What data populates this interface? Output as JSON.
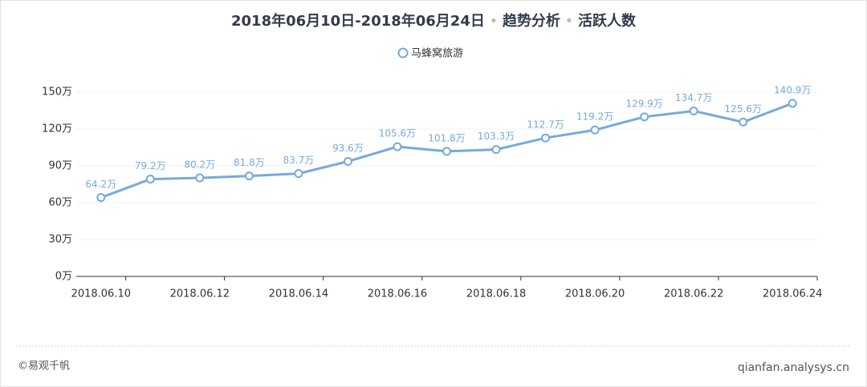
{
  "chart_data": {
    "type": "line",
    "title_parts": [
      "2018年06月10日-2018年06月24日",
      "趋势分析",
      "活跃人数"
    ],
    "categories": [
      "2018.06.10",
      null,
      "2018.06.12",
      null,
      "2018.06.14",
      null,
      "2018.06.16",
      null,
      "2018.06.18",
      null,
      "2018.06.20",
      null,
      "2018.06.22",
      null,
      "2018.06.24"
    ],
    "series": [
      {
        "name": "马蜂窝旅游",
        "color": "#76aadc",
        "values": [
          64.2,
          79.2,
          80.2,
          81.8,
          83.7,
          93.6,
          105.6,
          101.8,
          103.3,
          112.7,
          119.2,
          129.9,
          134.7,
          125.6,
          140.9
        ],
        "value_labels": [
          "64.2万",
          "79.2万",
          "80.2万",
          "81.8万",
          "83.7万",
          "93.6万",
          "105.6万",
          "101.8万",
          "103.3万",
          "112.7万",
          "119.2万",
          "129.9万",
          "134.7万",
          "125.6万",
          "140.9万"
        ]
      }
    ],
    "ylim": [
      0,
      150
    ],
    "yticks": [
      {
        "value": 0,
        "label": "0万"
      },
      {
        "value": 30,
        "label": "30万"
      },
      {
        "value": 60,
        "label": "60万"
      },
      {
        "value": 90,
        "label": "90万"
      },
      {
        "value": 120,
        "label": "120万"
      },
      {
        "value": 150,
        "label": "150万"
      }
    ],
    "grid": true,
    "legend": "top"
  },
  "footer": {
    "left": "©易观千帆",
    "right": "qianfan.analysys.cn"
  }
}
